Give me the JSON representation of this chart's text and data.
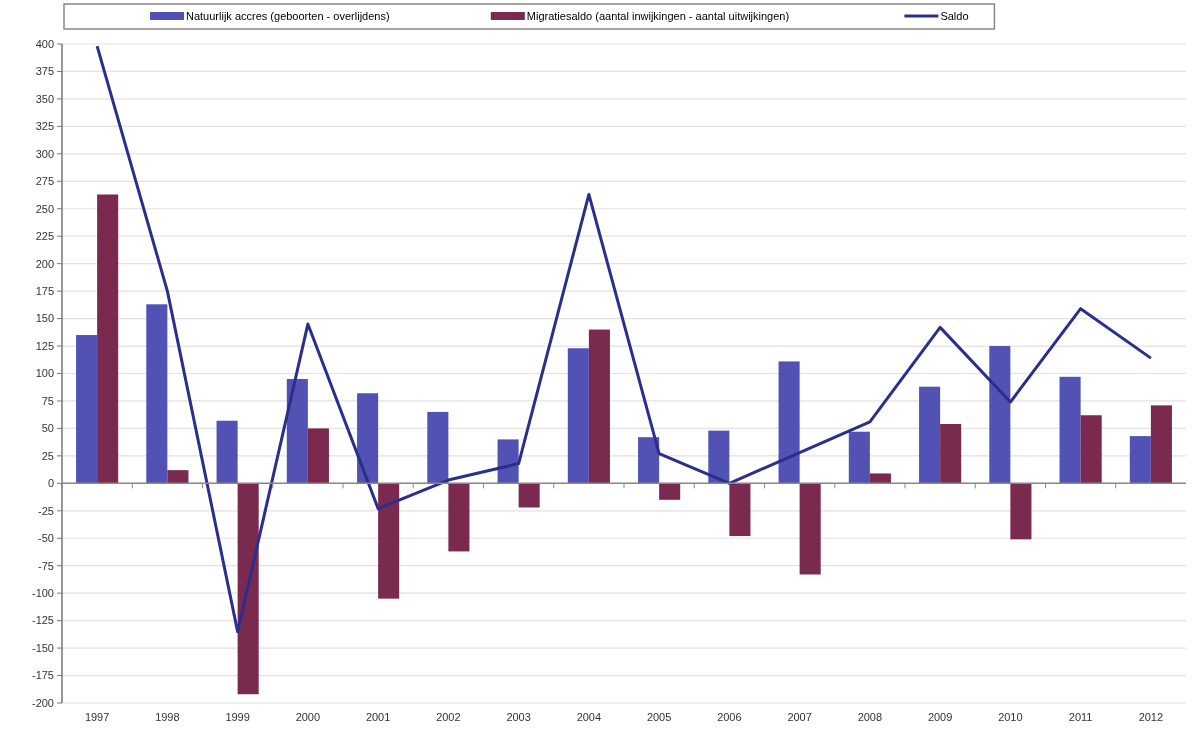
{
  "chart_data": {
    "type": "bar",
    "categories": [
      "1997",
      "1998",
      "1999",
      "2000",
      "2001",
      "2002",
      "2003",
      "2004",
      "2005",
      "2006",
      "2007",
      "2008",
      "2009",
      "2010",
      "2011",
      "2012"
    ],
    "series": [
      {
        "name": "Natuurlijk accres (geboorten - overlijdens)",
        "color": "#5252b5",
        "values": [
          135,
          163,
          57,
          95,
          82,
          65,
          40,
          123,
          42,
          48,
          111,
          47,
          88,
          125,
          97,
          43
        ]
      },
      {
        "name": "Migratiesaldo (aantal inwijkingen - aantal uitwijkingen)",
        "color": "#7b2a4f",
        "values": [
          263,
          12,
          -192,
          50,
          -105,
          -62,
          -22,
          140,
          -15,
          -48,
          -83,
          9,
          54,
          -51,
          62,
          71
        ]
      },
      {
        "name": "Saldo",
        "type": "line",
        "color": "#2b2f8c",
        "values": [
          398,
          175,
          -135,
          145,
          -23,
          3,
          18,
          263,
          27,
          0,
          28,
          56,
          142,
          74,
          159,
          114
        ]
      }
    ],
    "ylim": [
      -200,
      400
    ],
    "yticks": [
      -200,
      -175,
      -150,
      -125,
      -100,
      -75,
      -50,
      -25,
      0,
      25,
      50,
      75,
      100,
      125,
      150,
      175,
      200,
      225,
      250,
      275,
      300,
      325,
      350,
      375,
      400
    ],
    "grid": "y",
    "legend": "top",
    "marker": "none",
    "line_style": "solid"
  }
}
